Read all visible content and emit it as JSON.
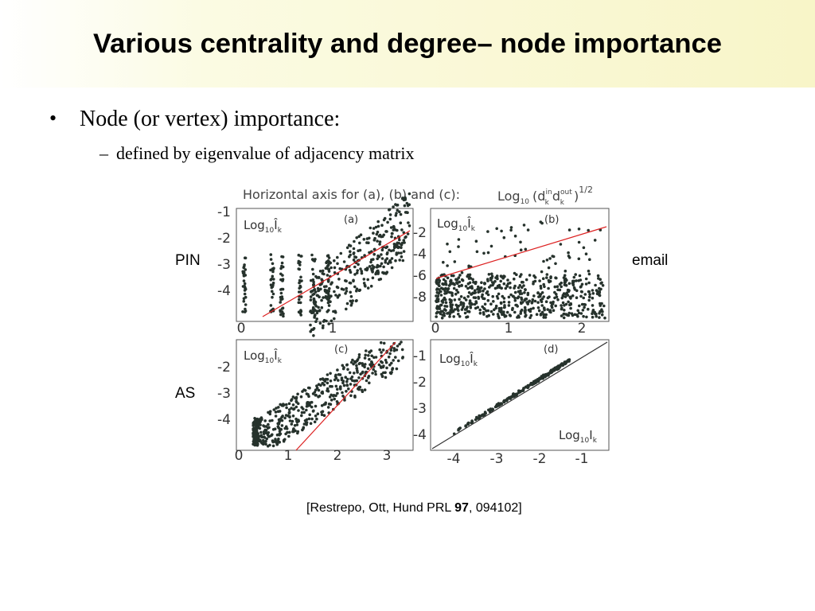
{
  "title": "Various centrality and degree– node importance",
  "bullets": [
    {
      "text": "Node (or vertex) importance:",
      "sub": [
        "defined by eigenvalue of adjacency matrix"
      ]
    }
  ],
  "figure": {
    "header": "Horizontal axis for (a), (b) and (c):",
    "formula": {
      "log": "Log",
      "base": "10",
      "open": "(d",
      "sub1": "k",
      "sup1": "in",
      "d2": "d",
      "sub2": "k",
      "sup2": "out",
      "close": ")",
      "power": "1/2"
    },
    "row_labels": [
      "PIN",
      "AS"
    ],
    "right_label": "email",
    "panels": [
      {
        "tag": "(a)",
        "ylabel": {
          "log": "Log",
          "base": "10",
          "var": "Î",
          "sub": "k"
        },
        "yticks": [
          "-1",
          "-2",
          "-3",
          "-4"
        ],
        "xticks": [
          "0",
          "1"
        ]
      },
      {
        "tag": "(b)",
        "ylabel": {
          "log": "Log",
          "base": "10",
          "var": "Î",
          "sub": "k"
        },
        "yticks": [
          "-2",
          "-4",
          "-6",
          "-8"
        ],
        "xticks": [
          "0",
          "1",
          "2"
        ]
      },
      {
        "tag": "(c)",
        "ylabel": {
          "log": "Log",
          "base": "10",
          "var": "Î",
          "sub": "k"
        },
        "yticks": [
          "-2",
          "-3",
          "-4"
        ],
        "xticks": [
          "0",
          "1",
          "2",
          "3"
        ]
      },
      {
        "tag": "(d)",
        "ylabel": {
          "log": "Log",
          "base": "10",
          "var": "Î",
          "sub": "k"
        },
        "xlabel": {
          "log": "Log",
          "base": "10",
          "var": "I",
          "sub": "k"
        },
        "yticks": [
          "-1",
          "-2",
          "-3",
          "-4"
        ],
        "xticks": [
          "-4",
          "-3",
          "-2",
          "-1"
        ]
      }
    ]
  },
  "citation": {
    "text": "[Restrepo, Ott, Hund PRL ",
    "bold": "97",
    "rest": ", 094102]"
  }
}
